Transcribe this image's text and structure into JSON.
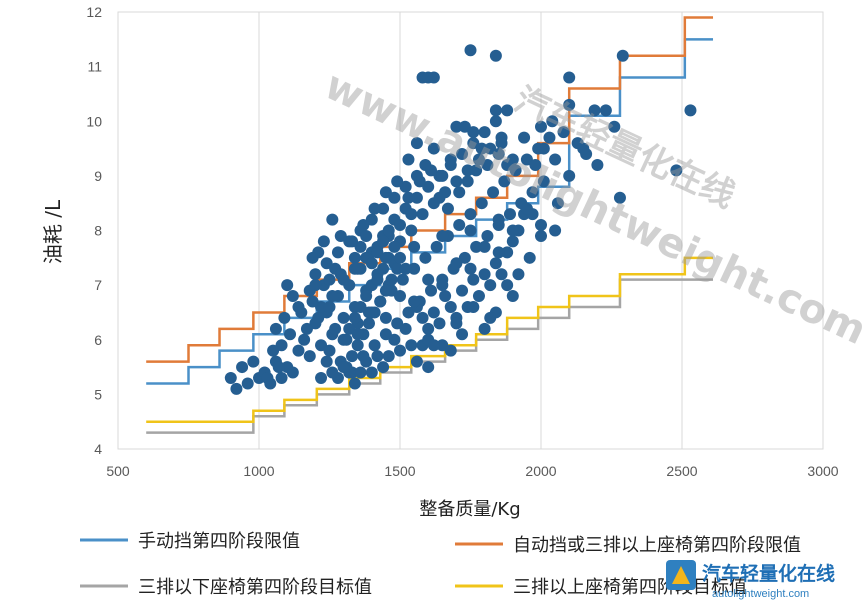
{
  "chart_data": {
    "type": "scatter",
    "xlabel": "整备质量/Kg",
    "ylabel": "油耗 /L",
    "xlim": [
      500,
      3000
    ],
    "ylim": [
      4,
      12
    ],
    "xticks": [
      500,
      1000,
      1500,
      2000,
      2500,
      3000
    ],
    "yticks": [
      4,
      5,
      6,
      7,
      8,
      9,
      10,
      11,
      12
    ],
    "grid": "vertical",
    "legend_position": "bottom",
    "scatter_color": "#255e91",
    "points": [
      [
        900,
        5.3
      ],
      [
        920,
        5.1
      ],
      [
        940,
        5.5
      ],
      [
        960,
        5.2
      ],
      [
        980,
        5.6
      ],
      [
        1000,
        5.3
      ],
      [
        1020,
        5.4
      ],
      [
        1040,
        5.2
      ],
      [
        1060,
        5.6
      ],
      [
        1080,
        5.3
      ],
      [
        1100,
        5.5
      ],
      [
        1120,
        5.4
      ],
      [
        1140,
        5.8
      ],
      [
        1160,
        6.0
      ],
      [
        1180,
        5.7
      ],
      [
        1200,
        6.3
      ],
      [
        1220,
        5.9
      ],
      [
        1240,
        6.5
      ],
      [
        1260,
        6.1
      ],
      [
        1280,
        6.8
      ],
      [
        1300,
        6.4
      ],
      [
        1320,
        7.0
      ],
      [
        1340,
        6.6
      ],
      [
        1360,
        7.3
      ],
      [
        1380,
        6.9
      ],
      [
        1400,
        7.6
      ],
      [
        1420,
        7.2
      ],
      [
        1440,
        7.9
      ],
      [
        1460,
        7.5
      ],
      [
        1480,
        8.2
      ],
      [
        1500,
        7.8
      ],
      [
        1520,
        8.4
      ],
      [
        1540,
        8.0
      ],
      [
        1560,
        8.6
      ],
      [
        1580,
        8.3
      ],
      [
        1600,
        8.8
      ],
      [
        1620,
        8.5
      ],
      [
        1640,
        9.0
      ],
      [
        1660,
        8.7
      ],
      [
        1680,
        9.2
      ],
      [
        1700,
        8.9
      ],
      [
        1720,
        9.4
      ],
      [
        1740,
        9.1
      ],
      [
        1760,
        9.6
      ],
      [
        1780,
        9.3
      ],
      [
        1800,
        9.8
      ],
      [
        1820,
        9.5
      ],
      [
        1840,
        10.0
      ],
      [
        1860,
        9.7
      ],
      [
        1880,
        10.2
      ],
      [
        1180,
        6.9
      ],
      [
        1200,
        7.2
      ],
      [
        1220,
        6.6
      ],
      [
        1240,
        7.4
      ],
      [
        1260,
        6.8
      ],
      [
        1280,
        7.6
      ],
      [
        1300,
        7.1
      ],
      [
        1320,
        7.8
      ],
      [
        1340,
        7.3
      ],
      [
        1360,
        8.0
      ],
      [
        1380,
        7.5
      ],
      [
        1400,
        8.2
      ],
      [
        1420,
        7.7
      ],
      [
        1440,
        8.4
      ],
      [
        1460,
        7.9
      ],
      [
        1480,
        8.6
      ],
      [
        1500,
        8.1
      ],
      [
        1520,
        8.8
      ],
      [
        1540,
        8.3
      ],
      [
        1560,
        9.0
      ],
      [
        1250,
        5.8
      ],
      [
        1270,
        6.2
      ],
      [
        1290,
        5.6
      ],
      [
        1310,
        6.0
      ],
      [
        1330,
        5.4
      ],
      [
        1350,
        6.3
      ],
      [
        1370,
        5.7
      ],
      [
        1390,
        6.5
      ],
      [
        1410,
        5.9
      ],
      [
        1430,
        6.7
      ],
      [
        1450,
        6.1
      ],
      [
        1470,
        6.9
      ],
      [
        1490,
        6.3
      ],
      [
        1510,
        7.1
      ],
      [
        1530,
        6.5
      ],
      [
        1550,
        7.3
      ],
      [
        1570,
        6.7
      ],
      [
        1590,
        7.5
      ],
      [
        1610,
        6.9
      ],
      [
        1630,
        7.7
      ],
      [
        1650,
        7.1
      ],
      [
        1670,
        7.9
      ],
      [
        1690,
        7.3
      ],
      [
        1710,
        8.1
      ],
      [
        1730,
        7.5
      ],
      [
        1750,
        8.3
      ],
      [
        1770,
        7.7
      ],
      [
        1790,
        8.5
      ],
      [
        1810,
        7.9
      ],
      [
        1830,
        8.7
      ],
      [
        1850,
        8.1
      ],
      [
        1870,
        8.9
      ],
      [
        1890,
        8.3
      ],
      [
        1910,
        9.1
      ],
      [
        1930,
        8.5
      ],
      [
        1950,
        9.3
      ],
      [
        1970,
        8.7
      ],
      [
        1990,
        9.5
      ],
      [
        2010,
        8.9
      ],
      [
        2030,
        9.7
      ],
      [
        1300,
        6.0
      ],
      [
        1320,
        6.2
      ],
      [
        1340,
        6.4
      ],
      [
        1360,
        6.6
      ],
      [
        1380,
        6.8
      ],
      [
        1400,
        7.0
      ],
      [
        1420,
        7.1
      ],
      [
        1440,
        7.3
      ],
      [
        1460,
        7.0
      ],
      [
        1480,
        7.4
      ],
      [
        1310,
        5.5
      ],
      [
        1330,
        5.7
      ],
      [
        1350,
        5.9
      ],
      [
        1370,
        6.1
      ],
      [
        1390,
        6.3
      ],
      [
        1410,
        6.5
      ],
      [
        1430,
        6.7
      ],
      [
        1450,
        6.9
      ],
      [
        1470,
        7.1
      ],
      [
        1490,
        7.3
      ],
      [
        1340,
        7.5
      ],
      [
        1360,
        7.7
      ],
      [
        1380,
        7.9
      ],
      [
        1400,
        7.4
      ],
      [
        1420,
        7.6
      ],
      [
        1440,
        7.8
      ],
      [
        1460,
        8.0
      ],
      [
        1480,
        7.7
      ],
      [
        1500,
        7.5
      ],
      [
        1520,
        7.3
      ],
      [
        1230,
        7.8
      ],
      [
        1260,
        8.2
      ],
      [
        1210,
        7.6
      ],
      [
        1290,
        7.9
      ],
      [
        1270,
        7.3
      ],
      [
        1230,
        7.0
      ],
      [
        1210,
        6.4
      ],
      [
        1190,
        6.7
      ],
      [
        1170,
        6.2
      ],
      [
        1150,
        6.5
      ],
      [
        1100,
        7.0
      ],
      [
        1120,
        6.8
      ],
      [
        1140,
        6.6
      ],
      [
        1090,
        6.4
      ],
      [
        1110,
        6.1
      ],
      [
        1080,
        5.9
      ],
      [
        1060,
        6.2
      ],
      [
        1050,
        5.8
      ],
      [
        1070,
        5.5
      ],
      [
        1030,
        5.3
      ],
      [
        1560,
        6.6
      ],
      [
        1580,
        6.4
      ],
      [
        1600,
        6.2
      ],
      [
        1620,
        6.5
      ],
      [
        1640,
        6.3
      ],
      [
        1660,
        6.8
      ],
      [
        1680,
        6.6
      ],
      [
        1700,
        6.4
      ],
      [
        1720,
        6.9
      ],
      [
        1740,
        6.6
      ],
      [
        1760,
        7.1
      ],
      [
        1780,
        6.8
      ],
      [
        1800,
        7.2
      ],
      [
        1820,
        7.0
      ],
      [
        1840,
        7.4
      ],
      [
        1860,
        7.2
      ],
      [
        1880,
        7.6
      ],
      [
        1900,
        7.8
      ],
      [
        1920,
        8.0
      ],
      [
        1940,
        8.3
      ],
      [
        1580,
        5.9
      ],
      [
        1600,
        6.0
      ],
      [
        1560,
        5.6
      ],
      [
        1540,
        5.9
      ],
      [
        1520,
        6.2
      ],
      [
        1500,
        5.8
      ],
      [
        1480,
        6.0
      ],
      [
        1460,
        5.7
      ],
      [
        1440,
        5.5
      ],
      [
        1420,
        5.7
      ],
      [
        1400,
        5.4
      ],
      [
        1380,
        5.6
      ],
      [
        1360,
        5.4
      ],
      [
        1340,
        5.2
      ],
      [
        1320,
        5.4
      ],
      [
        1300,
        5.5
      ],
      [
        1280,
        5.3
      ],
      [
        1260,
        5.4
      ],
      [
        1240,
        5.6
      ],
      [
        1220,
        5.3
      ],
      [
        1530,
        9.3
      ],
      [
        1560,
        9.6
      ],
      [
        1590,
        9.2
      ],
      [
        1620,
        9.5
      ],
      [
        1650,
        9.0
      ],
      [
        1680,
        9.3
      ],
      [
        1700,
        9.9
      ],
      [
        1730,
        9.9
      ],
      [
        1760,
        9.8
      ],
      [
        1790,
        9.5
      ],
      [
        1580,
        10.8
      ],
      [
        1600,
        10.8
      ],
      [
        1620,
        10.8
      ],
      [
        1750,
        11.3
      ],
      [
        1840,
        11.2
      ],
      [
        1840,
        10.2
      ],
      [
        2100,
        10.8
      ],
      [
        2100,
        10.3
      ],
      [
        2290,
        11.2
      ],
      [
        2000,
        9.9
      ],
      [
        2040,
        10.0
      ],
      [
        2080,
        9.8
      ],
      [
        2130,
        9.6
      ],
      [
        2160,
        9.4
      ],
      [
        2190,
        10.2
      ],
      [
        2230,
        10.2
      ],
      [
        2260,
        9.9
      ],
      [
        2280,
        8.6
      ],
      [
        1860,
        9.6
      ],
      [
        1900,
        9.3
      ],
      [
        1940,
        9.7
      ],
      [
        1980,
        9.2
      ],
      [
        2010,
        9.5
      ],
      [
        2050,
        9.3
      ],
      [
        2100,
        9.0
      ],
      [
        2000,
        7.9
      ],
      [
        2050,
        8.0
      ],
      [
        1960,
        7.5
      ],
      [
        2480,
        9.1
      ],
      [
        2530,
        10.2
      ],
      [
        2150,
        9.5
      ],
      [
        2200,
        9.2
      ],
      [
        2060,
        8.5
      ],
      [
        1970,
        8.3
      ],
      [
        2000,
        8.1
      ],
      [
        1920,
        7.2
      ],
      [
        1880,
        7.0
      ],
      [
        1900,
        6.8
      ],
      [
        1840,
        6.5
      ],
      [
        1820,
        6.4
      ],
      [
        1760,
        6.6
      ],
      [
        1700,
        6.3
      ],
      [
        1650,
        5.9
      ],
      [
        1620,
        5.9
      ],
      [
        1600,
        5.5
      ],
      [
        1680,
        5.8
      ],
      [
        1720,
        6.1
      ],
      [
        1800,
        6.2
      ],
      [
        1250,
        7.1
      ],
      [
        1350,
        7.3
      ],
      [
        1450,
        7.5
      ],
      [
        1550,
        7.7
      ],
      [
        1650,
        7.9
      ],
      [
        1750,
        8.0
      ],
      [
        1850,
        8.2
      ],
      [
        1950,
        8.4
      ],
      [
        1400,
        6.5
      ],
      [
        1500,
        6.8
      ],
      [
        1600,
        7.1
      ],
      [
        1700,
        7.4
      ],
      [
        1800,
        7.7
      ],
      [
        1900,
        8.0
      ],
      [
        1350,
        6.1
      ],
      [
        1450,
        6.4
      ],
      [
        1550,
        6.7
      ],
      [
        1650,
        7.0
      ],
      [
        1750,
        7.3
      ],
      [
        1850,
        7.6
      ],
      [
        1190,
        7.5
      ],
      [
        1200,
        7.0
      ],
      [
        1250,
        6.6
      ],
      [
        1290,
        7.2
      ],
      [
        1330,
        7.8
      ],
      [
        1370,
        8.1
      ],
      [
        1410,
        8.4
      ],
      [
        1450,
        8.7
      ],
      [
        1490,
        8.9
      ],
      [
        1530,
        8.6
      ],
      [
        1570,
        8.9
      ],
      [
        1610,
        9.1
      ],
      [
        1640,
        8.6
      ],
      [
        1670,
        8.4
      ],
      [
        1710,
        8.7
      ],
      [
        1740,
        8.9
      ],
      [
        1770,
        9.1
      ],
      [
        1810,
        9.2
      ],
      [
        1850,
        9.4
      ],
      [
        1880,
        9.2
      ]
    ],
    "series": [
      {
        "name": "手动挡第四阶段限值",
        "color": "#4a90c8",
        "steps": [
          [
            600,
            5.2
          ],
          [
            750,
            5.5
          ],
          [
            860,
            5.8
          ],
          [
            980,
            6.1
          ],
          [
            1090,
            6.4
          ],
          [
            1205,
            6.7
          ],
          [
            1320,
            7.0
          ],
          [
            1430,
            7.3
          ],
          [
            1540,
            7.6
          ],
          [
            1660,
            7.9
          ],
          [
            1770,
            8.2
          ],
          [
            1880,
            8.5
          ],
          [
            1990,
            8.8
          ],
          [
            2100,
            9.7
          ],
          [
            2100,
            10.1
          ],
          [
            2280,
            10.8
          ],
          [
            2510,
            11.5
          ],
          [
            2610,
            11.5
          ]
        ]
      },
      {
        "name": "自动挡或三排以上座椅第四阶段限值",
        "color": "#e07b39",
        "steps": [
          [
            600,
            5.6
          ],
          [
            750,
            5.9
          ],
          [
            860,
            6.2
          ],
          [
            980,
            6.5
          ],
          [
            1090,
            6.8
          ],
          [
            1205,
            7.1
          ],
          [
            1320,
            7.4
          ],
          [
            1430,
            7.7
          ],
          [
            1540,
            8.0
          ],
          [
            1660,
            8.3
          ],
          [
            1770,
            8.6
          ],
          [
            1880,
            9.0
          ],
          [
            1990,
            9.6
          ],
          [
            2100,
            10.1
          ],
          [
            2100,
            10.6
          ],
          [
            2280,
            11.2
          ],
          [
            2510,
            11.9
          ],
          [
            2610,
            11.9
          ]
        ]
      },
      {
        "name": "三排以下座椅第四阶段目标值",
        "color": "#a5a5a5",
        "steps": [
          [
            600,
            4.3
          ],
          [
            980,
            4.6
          ],
          [
            1090,
            4.8
          ],
          [
            1205,
            5.0
          ],
          [
            1320,
            5.2
          ],
          [
            1430,
            5.4
          ],
          [
            1540,
            5.6
          ],
          [
            1660,
            5.8
          ],
          [
            1770,
            6.0
          ],
          [
            1880,
            6.2
          ],
          [
            1990,
            6.4
          ],
          [
            2100,
            6.6
          ],
          [
            2280,
            7.1
          ],
          [
            2510,
            7.1
          ],
          [
            2610,
            7.1
          ]
        ]
      },
      {
        "name": "三排以上座椅第四阶段目标值",
        "color": "#f0c419",
        "steps": [
          [
            600,
            4.5
          ],
          [
            980,
            4.7
          ],
          [
            1090,
            4.9
          ],
          [
            1205,
            5.1
          ],
          [
            1320,
            5.3
          ],
          [
            1430,
            5.5
          ],
          [
            1540,
            5.7
          ],
          [
            1660,
            5.9
          ],
          [
            1770,
            6.1
          ],
          [
            1880,
            6.4
          ],
          [
            1990,
            6.6
          ],
          [
            2100,
            6.8
          ],
          [
            2280,
            7.2
          ],
          [
            2510,
            7.5
          ],
          [
            2610,
            7.5
          ]
        ]
      }
    ]
  },
  "watermark": {
    "line1": "汽车轻量化在线",
    "line2": "www.autolightweight.com"
  },
  "logo": {
    "name": "汽车轻量化在线",
    "url": "autolightweight.com"
  }
}
